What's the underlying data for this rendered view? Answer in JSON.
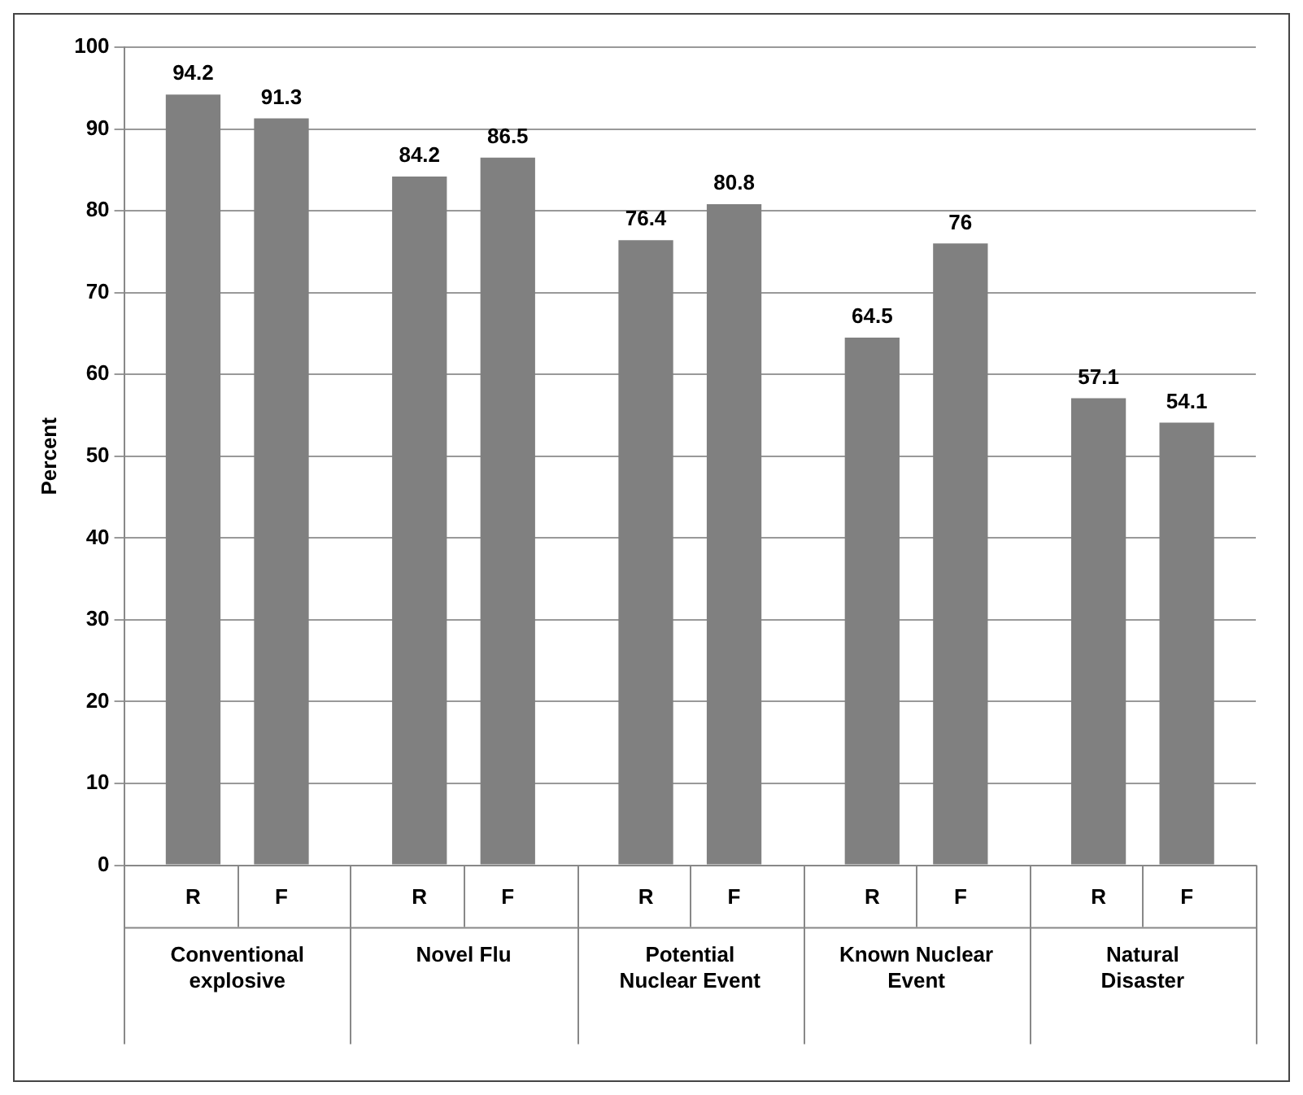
{
  "chart_data": {
    "type": "bar",
    "ylabel": "Percent",
    "categories": [
      "Conventional explosive",
      "Novel Flu",
      "Potential Nuclear Event",
      "Known Nuclear Event",
      "Natural Disaster"
    ],
    "series": [
      {
        "name": "R",
        "color": "#808080",
        "values": [
          94.2,
          84.2,
          76.4,
          64.5,
          57.1
        ]
      },
      {
        "name": "F",
        "color": "#808080",
        "values": [
          91.3,
          86.5,
          80.8,
          76,
          54.1
        ]
      }
    ],
    "ylim": [
      0,
      100
    ],
    "yticks": [
      0,
      10,
      20,
      30,
      40,
      50,
      60,
      70,
      80,
      90,
      100
    ],
    "grid": "y",
    "data_labels": true,
    "legend": false
  }
}
